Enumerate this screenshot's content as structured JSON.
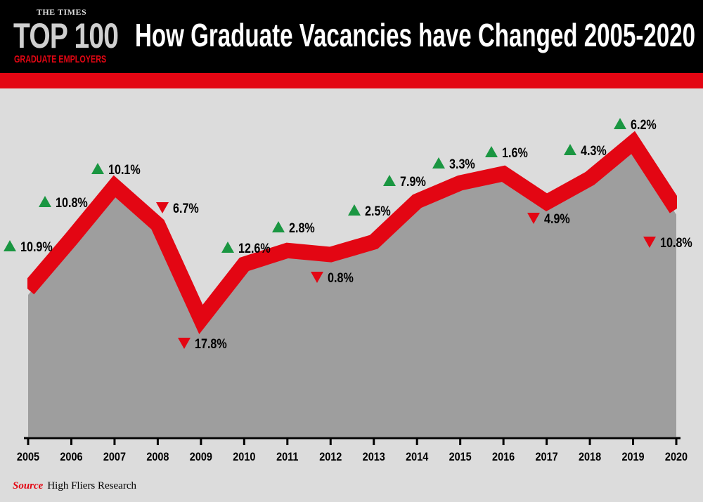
{
  "logo": {
    "publisher": "THE TIMES",
    "line1": "TOP 100",
    "line2": "GRADUATE EMPLOYERS"
  },
  "title": "How Graduate Vacancies have Changed 2005-2020",
  "source": {
    "label": "Source",
    "text": "High Fliers Research"
  },
  "colors": {
    "line": "#e30613",
    "area": "#9e9e9e",
    "background": "#dcdcdc",
    "up": "#1a9641",
    "down": "#e30613",
    "header": "#000000"
  },
  "chart_data": {
    "type": "area",
    "title": "How Graduate Vacancies have Changed 2005-2020",
    "x": [
      "2005",
      "2006",
      "2007",
      "2008",
      "2009",
      "2010",
      "2011",
      "2012",
      "2013",
      "2014",
      "2015",
      "2016",
      "2017",
      "2018",
      "2019",
      "2020"
    ],
    "annotations": [
      {
        "year": "2005",
        "direction": "up",
        "label": "10.9%"
      },
      {
        "year": "2006",
        "direction": "up",
        "label": "10.8%"
      },
      {
        "year": "2007",
        "direction": "up",
        "label": "10.1%"
      },
      {
        "year": "2008",
        "direction": "down",
        "label": "6.7%"
      },
      {
        "year": "2009",
        "direction": "down",
        "label": "17.8%"
      },
      {
        "year": "2010",
        "direction": "up",
        "label": "12.6%"
      },
      {
        "year": "2011",
        "direction": "up",
        "label": "2.8%"
      },
      {
        "year": "2012",
        "direction": "down",
        "label": "0.8%"
      },
      {
        "year": "2013",
        "direction": "up",
        "label": "2.5%"
      },
      {
        "year": "2014",
        "direction": "up",
        "label": "7.9%"
      },
      {
        "year": "2015",
        "direction": "up",
        "label": "3.3%"
      },
      {
        "year": "2016",
        "direction": "up",
        "label": "1.6%"
      },
      {
        "year": "2017",
        "direction": "down",
        "label": "4.9%"
      },
      {
        "year": "2018",
        "direction": "up",
        "label": "4.3%"
      },
      {
        "year": "2019",
        "direction": "up",
        "label": "6.2%"
      },
      {
        "year": "2020",
        "direction": "down",
        "label": "10.8%"
      }
    ],
    "changes_pct": [
      10.9,
      10.8,
      10.1,
      -6.7,
      -17.8,
      12.6,
      2.8,
      -0.8,
      2.5,
      7.9,
      3.3,
      1.6,
      -4.9,
      4.3,
      6.2,
      -10.8
    ],
    "y_axis_shown": false,
    "grid": false,
    "legend": "none"
  }
}
